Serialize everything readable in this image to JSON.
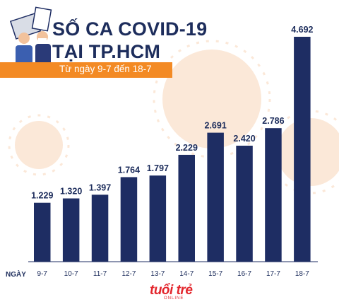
{
  "header": {
    "title_line1": "SỐ CA COVID-19",
    "title_line2": "TẠI TP.HCM",
    "subtitle": "Từ ngày 9-7 đến 18-7"
  },
  "axis_label": "NGÀY",
  "logo": {
    "text": "tuổi trẻ",
    "sub": "ONLINE"
  },
  "colors": {
    "bar": "#1e2d63",
    "accent": "#f38a24",
    "title": "#1d2d5c",
    "brand": "#e3262d",
    "virus": "#fbe4d2"
  },
  "chart_data": {
    "type": "bar",
    "categories": [
      "9-7",
      "10-7",
      "11-7",
      "12-7",
      "13-7",
      "14-7",
      "15-7",
      "16-7",
      "17-7",
      "18-7"
    ],
    "values": [
      1229,
      1320,
      1397,
      1764,
      1797,
      2229,
      2691,
      2420,
      2786,
      4692
    ],
    "value_labels": [
      "1.229",
      "1.320",
      "1.397",
      "1.764",
      "1.797",
      "2.229",
      "2.691",
      "2.420",
      "2.786",
      "4.692"
    ],
    "title": "SỐ CA COVID-19 TẠI TP.HCM",
    "subtitle": "Từ ngày 9-7 đến 18-7",
    "xlabel": "NGÀY",
    "ylabel": "",
    "ylim": [
      0,
      4692
    ],
    "grid": false,
    "legend": "none"
  }
}
